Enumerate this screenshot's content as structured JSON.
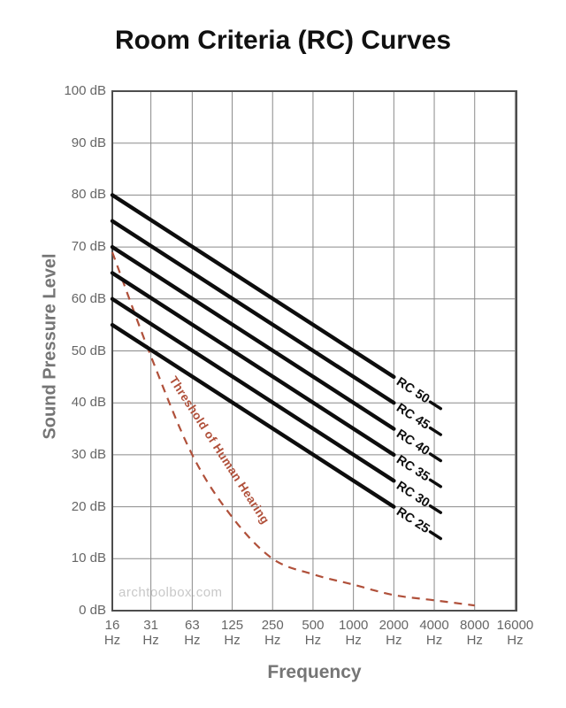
{
  "title": "Room Criteria (RC) Curves",
  "watermark": "archtoolbox.com",
  "colors": {
    "rc_line": "#0d0d0d",
    "threshold": "#b0503a",
    "grid": "#8a8a8a",
    "border": "#4d4d4d",
    "tick_text": "#666666",
    "axis_title_text": "#757575",
    "title_text": "#111111",
    "watermark_text": "#c8c8c8"
  },
  "x_axis": {
    "title": "Frequency",
    "unit": "Hz",
    "tick_values": [
      "16",
      "31",
      "63",
      "125",
      "250",
      "500",
      "1000",
      "2000",
      "4000",
      "8000",
      "16000"
    ]
  },
  "y_axis": {
    "title": "Sound Pressure Level",
    "unit": "dB",
    "tick_labels": [
      "0 dB",
      "10 dB",
      "20 dB",
      "30 dB",
      "40 dB",
      "50 dB",
      "60 dB",
      "70 dB",
      "80 dB",
      "90 dB",
      "100 dB"
    ]
  },
  "chart_data": {
    "type": "line",
    "title": "Room Criteria (RC) Curves",
    "xlabel": "Frequency",
    "ylabel": "Sound Pressure Level",
    "x_scale": "log-octave",
    "x_ticks_hz": [
      16,
      31,
      63,
      125,
      250,
      500,
      1000,
      2000,
      4000,
      8000,
      16000
    ],
    "ylim": [
      0,
      100
    ],
    "grid": true,
    "rc_curves": [
      {
        "name": "RC 50",
        "points": [
          [
            16,
            80
          ],
          [
            2000,
            45
          ]
        ]
      },
      {
        "name": "RC 45",
        "points": [
          [
            16,
            75
          ],
          [
            2000,
            40
          ]
        ]
      },
      {
        "name": "RC 40",
        "points": [
          [
            16,
            70
          ],
          [
            2000,
            35
          ]
        ]
      },
      {
        "name": "RC 35",
        "points": [
          [
            16,
            65
          ],
          [
            2000,
            30
          ]
        ]
      },
      {
        "name": "RC 30",
        "points": [
          [
            16,
            60
          ],
          [
            2000,
            25
          ]
        ]
      },
      {
        "name": "RC 25",
        "points": [
          [
            16,
            55
          ],
          [
            2000,
            20
          ]
        ]
      }
    ],
    "threshold_curve": {
      "name": "Threshold of Human Hearing",
      "style": "dashed",
      "points": [
        [
          16,
          69
        ],
        [
          31,
          49
        ],
        [
          63,
          30
        ],
        [
          125,
          18
        ],
        [
          250,
          10
        ],
        [
          500,
          7
        ],
        [
          1000,
          5
        ],
        [
          2000,
          3
        ],
        [
          4000,
          2
        ],
        [
          8000,
          1
        ]
      ]
    }
  }
}
